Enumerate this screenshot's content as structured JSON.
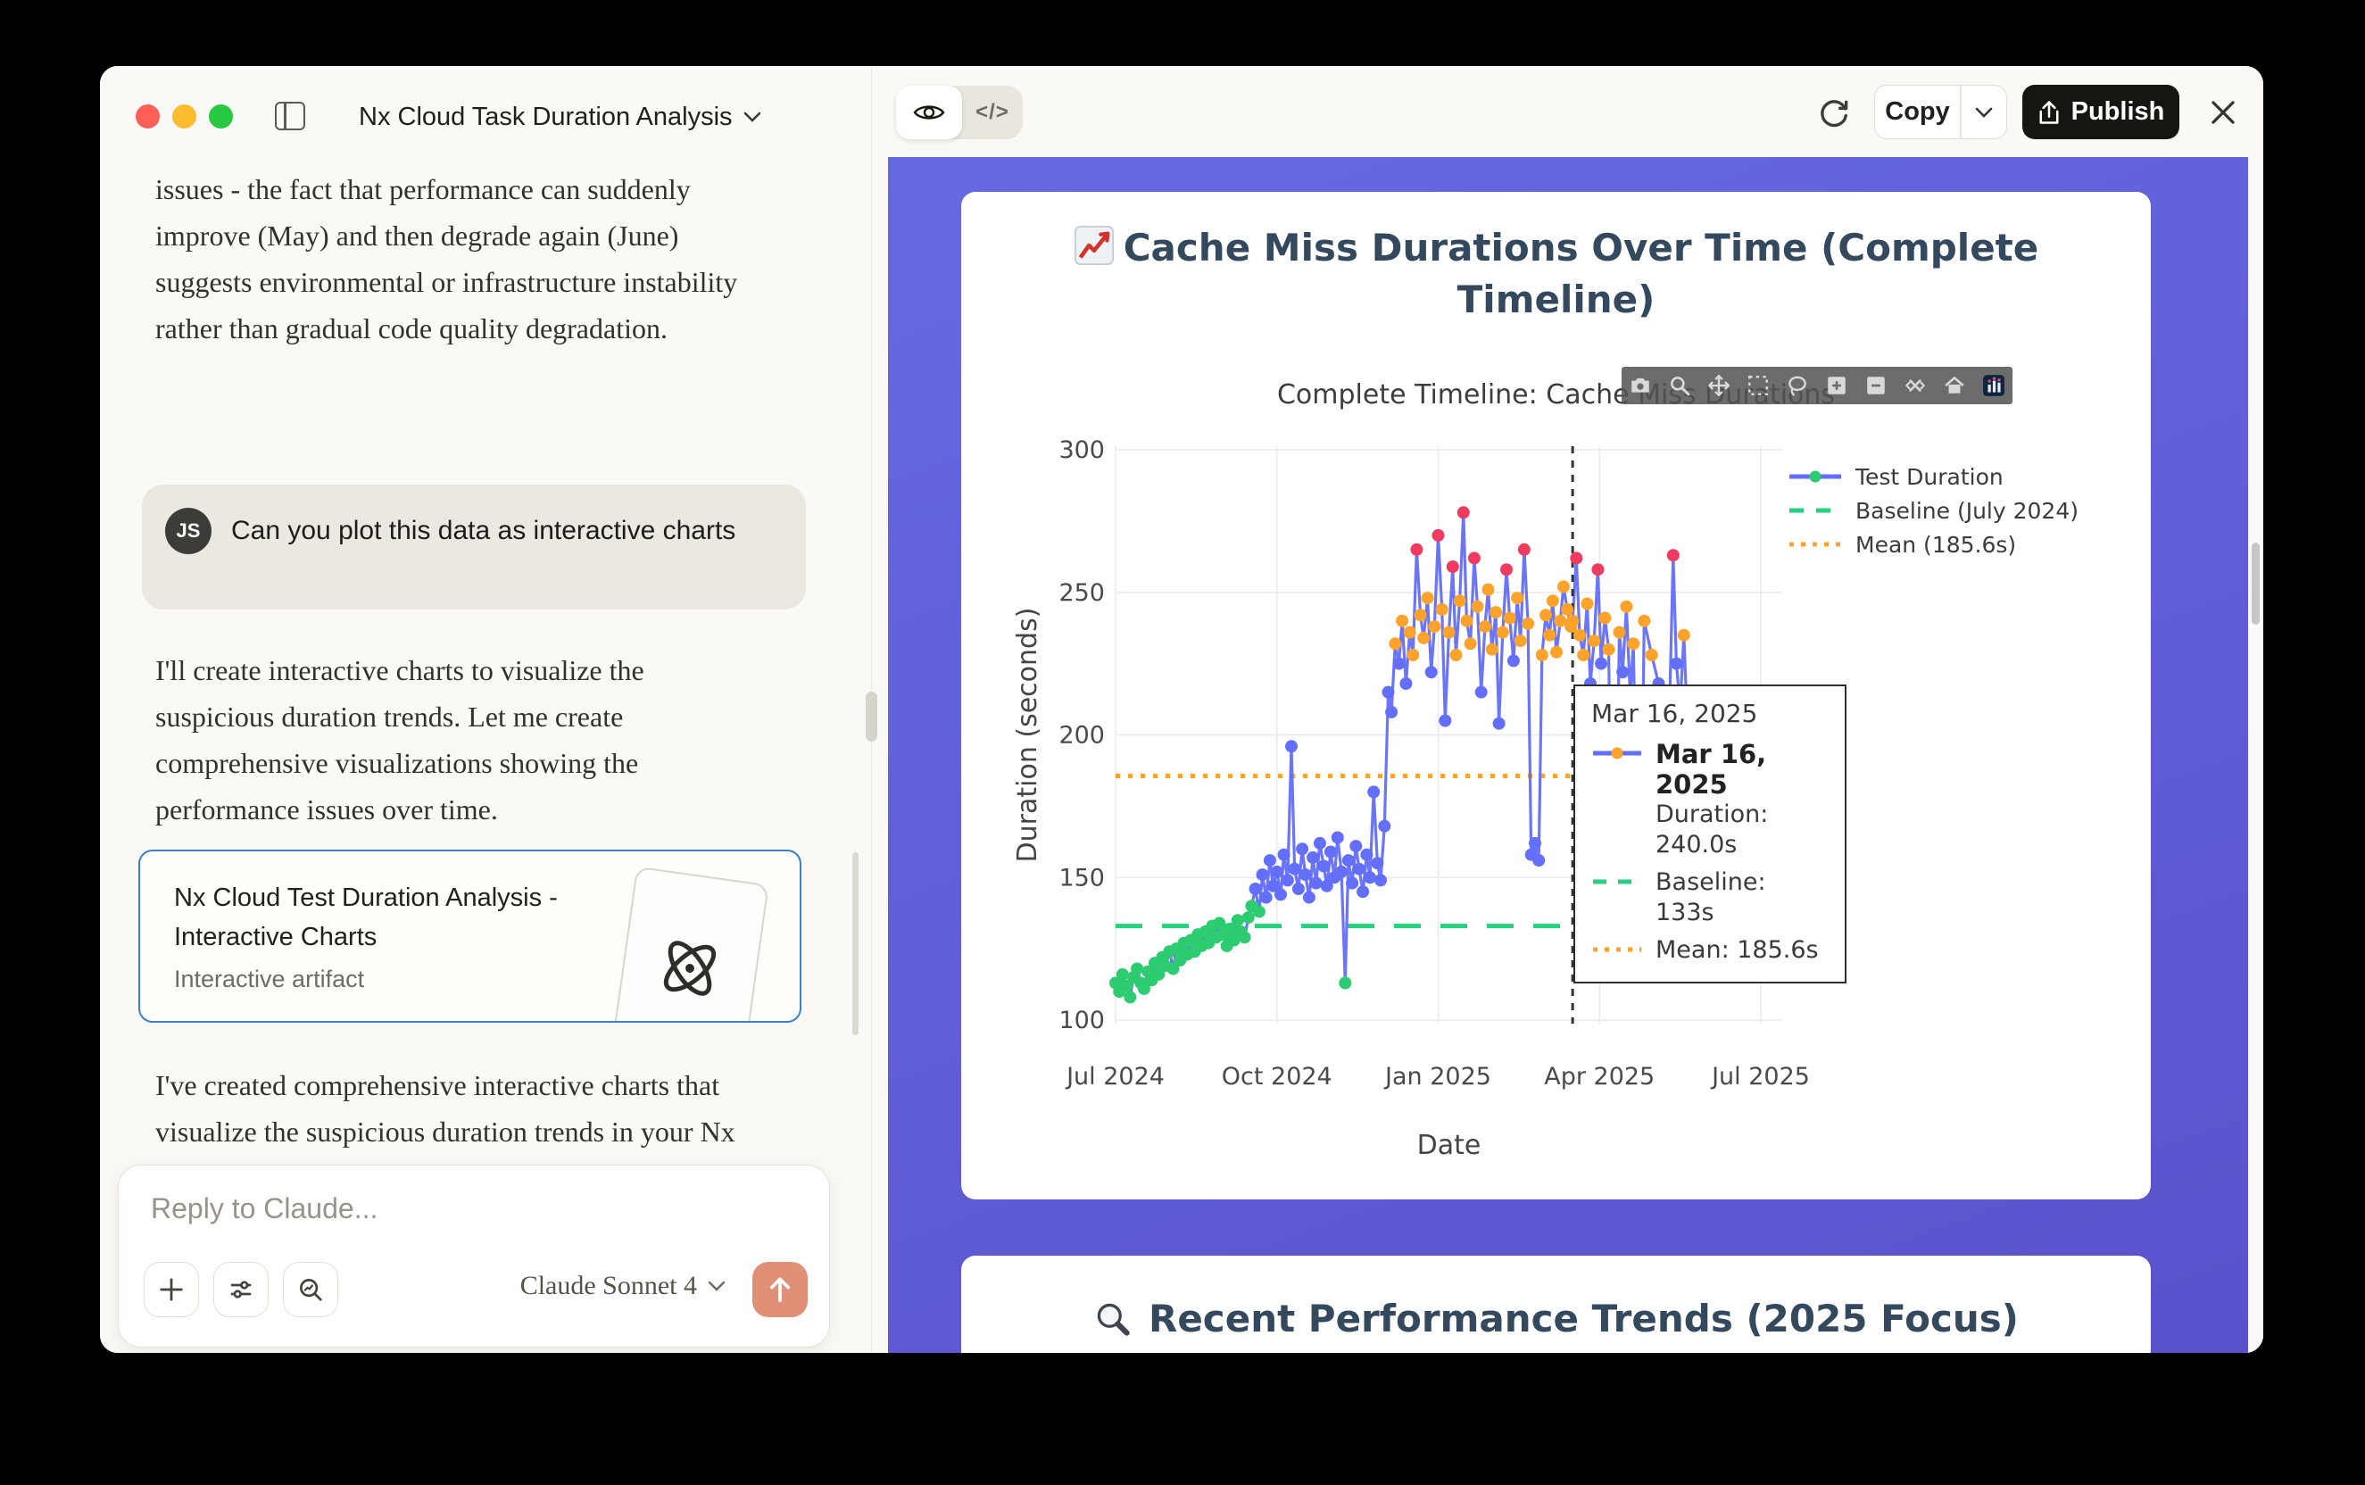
{
  "window_title": "Nx Cloud Task Duration Analysis",
  "chat": {
    "paragraph1": "issues - the fact that performance can suddenly improve (May) and then degrade again (June) suggests environmental or infrastructure instability rather than gradual code quality degradation.",
    "user_avatar": "JS",
    "user_message": "Can you plot this data as interactive charts",
    "paragraph2": "I'll create interactive charts to visualize the suspicious duration trends. Let me create comprehensive visualizations showing the performance issues over time.",
    "artifact_card": {
      "title": "Nx Cloud Test Duration Analysis - Interactive Charts",
      "subtitle": "Interactive artifact"
    },
    "paragraph3": "I've created comprehensive interactive charts that visualize the suspicious duration trends in your Nx Cloud test data. Here's what the",
    "composer": {
      "placeholder": "Reply to Claude...",
      "model": "Claude Sonnet 4"
    }
  },
  "artifact_header": {
    "code_toggle": "</>",
    "copy_label": "Copy",
    "publish_label": "Publish"
  },
  "chart_data": {
    "type": "scatter",
    "title": "Cache Miss Durations Over Time (Complete Timeline)",
    "title_icon": "chart-increasing-emoji",
    "plot_title": "Complete Timeline: Cache Miss Durations",
    "xlabel": "Date",
    "ylabel": "Duration (seconds)",
    "ylim": [
      95,
      305
    ],
    "yticks": [
      100,
      150,
      200,
      250,
      300
    ],
    "xtick_labels": [
      "Jul 2024",
      "Oct 2024",
      "Jan 2025",
      "Apr 2025",
      "Jul 2025"
    ],
    "xtick_months": [
      0,
      3,
      6,
      9,
      12
    ],
    "grid": true,
    "legend_position": "top-right",
    "legend": [
      {
        "label": "Test Duration",
        "style": "line-marker",
        "line_color": "#636efa",
        "marker_color": "#2ecc71"
      },
      {
        "label": "Baseline (July 2024)",
        "style": "dashed",
        "color": "#26d07c"
      },
      {
        "label": "Mean (185.6s)",
        "style": "dotted",
        "color": "#fda32b"
      }
    ],
    "baseline_seconds": 133,
    "mean_seconds": 185.6,
    "event_line_month": 8.5,
    "marker_rules": {
      "green_max": 140,
      "orange_min": 228,
      "orange_max": 252,
      "red_min": 253,
      "default": "blue"
    },
    "colors": {
      "blue": "#636efa",
      "green": "#2ecc71",
      "orange": "#fda32b",
      "red": "#ee3b5f"
    },
    "points_note": "x = months after Jul 2024, y = duration seconds",
    "points": [
      [
        0,
        113
      ],
      [
        0.07,
        110
      ],
      [
        0.13,
        116
      ],
      [
        0.2,
        112
      ],
      [
        0.27,
        108
      ],
      [
        0.33,
        115
      ],
      [
        0.4,
        118
      ],
      [
        0.47,
        113
      ],
      [
        0.53,
        111
      ],
      [
        0.6,
        117
      ],
      [
        0.67,
        114
      ],
      [
        0.73,
        120
      ],
      [
        0.8,
        116
      ],
      [
        0.87,
        122
      ],
      [
        0.93,
        119
      ],
      [
        1,
        124
      ],
      [
        1.07,
        118
      ],
      [
        1.13,
        125
      ],
      [
        1.2,
        121
      ],
      [
        1.27,
        127
      ],
      [
        1.33,
        123
      ],
      [
        1.4,
        128
      ],
      [
        1.47,
        124
      ],
      [
        1.53,
        130
      ],
      [
        1.6,
        126
      ],
      [
        1.67,
        131
      ],
      [
        1.73,
        127
      ],
      [
        1.8,
        133
      ],
      [
        1.87,
        129
      ],
      [
        1.93,
        134
      ],
      [
        2,
        130
      ],
      [
        2.07,
        126
      ],
      [
        2.13,
        132
      ],
      [
        2.2,
        128
      ],
      [
        2.27,
        135
      ],
      [
        2.33,
        131
      ],
      [
        2.4,
        129
      ],
      [
        2.47,
        136
      ],
      [
        2.53,
        140
      ],
      [
        2.6,
        146
      ],
      [
        2.67,
        138
      ],
      [
        2.73,
        151
      ],
      [
        2.8,
        143
      ],
      [
        2.87,
        156
      ],
      [
        2.93,
        147
      ],
      [
        3,
        152
      ],
      [
        3.07,
        144
      ],
      [
        3.13,
        158
      ],
      [
        3.2,
        149
      ],
      [
        3.27,
        196
      ],
      [
        3.33,
        153
      ],
      [
        3.4,
        146
      ],
      [
        3.47,
        160
      ],
      [
        3.53,
        151
      ],
      [
        3.6,
        143
      ],
      [
        3.67,
        157
      ],
      [
        3.73,
        148
      ],
      [
        3.8,
        162
      ],
      [
        3.87,
        154
      ],
      [
        3.93,
        147
      ],
      [
        4,
        159
      ],
      [
        4.07,
        150
      ],
      [
        4.13,
        164
      ],
      [
        4.2,
        152
      ],
      [
        4.27,
        113
      ],
      [
        4.33,
        156
      ],
      [
        4.4,
        148
      ],
      [
        4.47,
        161
      ],
      [
        4.53,
        153
      ],
      [
        4.6,
        145
      ],
      [
        4.67,
        158
      ],
      [
        4.73,
        150
      ],
      [
        4.8,
        180
      ],
      [
        4.87,
        155
      ],
      [
        4.93,
        149
      ],
      [
        5,
        168
      ],
      [
        5.07,
        215
      ],
      [
        5.13,
        208
      ],
      [
        5.2,
        232
      ],
      [
        5.27,
        225
      ],
      [
        5.33,
        240
      ],
      [
        5.4,
        218
      ],
      [
        5.47,
        236
      ],
      [
        5.53,
        228
      ],
      [
        5.6,
        265
      ],
      [
        5.67,
        242
      ],
      [
        5.73,
        234
      ],
      [
        5.8,
        248
      ],
      [
        5.87,
        222
      ],
      [
        5.93,
        238
      ],
      [
        6,
        270
      ],
      [
        6.07,
        244
      ],
      [
        6.13,
        205
      ],
      [
        6.2,
        236
      ],
      [
        6.27,
        259
      ],
      [
        6.33,
        228
      ],
      [
        6.4,
        247
      ],
      [
        6.47,
        278
      ],
      [
        6.53,
        240
      ],
      [
        6.6,
        232
      ],
      [
        6.67,
        262
      ],
      [
        6.73,
        245
      ],
      [
        6.8,
        215
      ],
      [
        6.87,
        238
      ],
      [
        6.93,
        251
      ],
      [
        7,
        230
      ],
      [
        7.07,
        243
      ],
      [
        7.13,
        204
      ],
      [
        7.2,
        236
      ],
      [
        7.27,
        258
      ],
      [
        7.33,
        241
      ],
      [
        7.4,
        226
      ],
      [
        7.47,
        248
      ],
      [
        7.53,
        233
      ],
      [
        7.6,
        265
      ],
      [
        7.67,
        239
      ],
      [
        7.73,
        158
      ],
      [
        7.8,
        162
      ],
      [
        7.87,
        156
      ],
      [
        7.93,
        228
      ],
      [
        8,
        242
      ],
      [
        8.07,
        235
      ],
      [
        8.13,
        247
      ],
      [
        8.2,
        229
      ],
      [
        8.27,
        240
      ],
      [
        8.33,
        252
      ],
      [
        8.4,
        244
      ],
      [
        8.47,
        238
      ],
      [
        8.5,
        240
      ],
      [
        8.57,
        262
      ],
      [
        8.63,
        235
      ],
      [
        8.7,
        228
      ],
      [
        8.77,
        246
      ],
      [
        8.83,
        218
      ],
      [
        8.9,
        233
      ],
      [
        8.97,
        258
      ],
      [
        9.03,
        225
      ],
      [
        9.1,
        241
      ],
      [
        9.17,
        230
      ],
      [
        9.23,
        152
      ],
      [
        9.3,
        148
      ],
      [
        9.37,
        236
      ],
      [
        9.43,
        222
      ],
      [
        9.5,
        245
      ],
      [
        9.57,
        214
      ],
      [
        9.63,
        232
      ],
      [
        9.7,
        158
      ],
      [
        9.77,
        146
      ],
      [
        9.83,
        240
      ],
      [
        9.97,
        228
      ],
      [
        10.1,
        218
      ],
      [
        10.23,
        152
      ],
      [
        10.37,
        263
      ],
      [
        10.43,
        225
      ],
      [
        10.5,
        210
      ],
      [
        10.57,
        235
      ],
      [
        10.63,
        205
      ],
      [
        10.7,
        150
      ]
    ],
    "tooltip": {
      "header": "Mar 16, 2025",
      "point_date": "Mar 16, 2025",
      "duration": "Duration: 240.0s",
      "baseline": "Baseline: 133s",
      "mean": "Mean: 185.6s"
    },
    "section2_title": "Recent Performance Trends (2025 Focus)",
    "section2_icon": "magnifier-emoji"
  }
}
